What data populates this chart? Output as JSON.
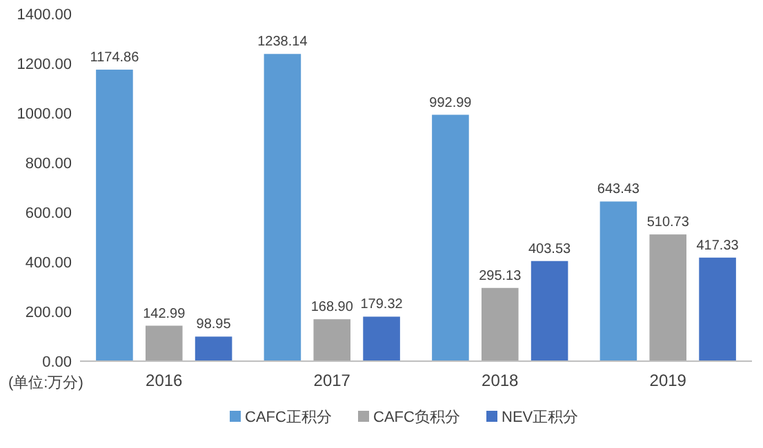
{
  "chart_data": {
    "type": "bar",
    "categories": [
      "2016",
      "2017",
      "2018",
      "2019"
    ],
    "series": [
      {
        "name": "CAFC正积分",
        "color": "#5b9bd5",
        "values": [
          1174.86,
          1238.14,
          992.99,
          643.43
        ]
      },
      {
        "name": "CAFC负积分",
        "color": "#a5a5a5",
        "values": [
          142.99,
          168.9,
          295.13,
          510.73
        ]
      },
      {
        "name": "NEV正积分",
        "color": "#4472c4",
        "values": [
          98.95,
          179.32,
          403.53,
          417.33
        ]
      }
    ],
    "ylim": [
      0,
      1400
    ],
    "yticks": [
      {
        "value": 0,
        "label": "0.00"
      },
      {
        "value": 200,
        "label": "200.00"
      },
      {
        "value": 400,
        "label": "400.00"
      },
      {
        "value": 600,
        "label": "600.00"
      },
      {
        "value": 800,
        "label": "800.00"
      },
      {
        "value": 1000,
        "label": "1000.00"
      },
      {
        "value": 1200,
        "label": "1200.00"
      },
      {
        "value": 1400,
        "label": "1400.00"
      }
    ],
    "value_labels": [
      [
        "1174.86",
        "1238.14",
        "992.99",
        "643.43"
      ],
      [
        "142.99",
        "168.90",
        "295.13",
        "510.73"
      ],
      [
        "98.95",
        "179.32",
        "403.53",
        "417.33"
      ]
    ],
    "annotations": [
      "(单位:万分)"
    ],
    "legend": "bottom",
    "grid": false
  }
}
